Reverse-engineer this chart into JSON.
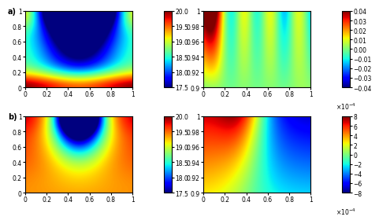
{
  "nx": 200,
  "ny": 200,
  "temp_cmap": "jet",
  "vel_cmap": "jet",
  "temp_vmin": 17.5,
  "temp_vmax": 20.0,
  "vel_a_vmin": -0.04,
  "vel_a_vmax": 0.04,
  "vel_b_vmin": -8,
  "vel_b_vmax": 8,
  "temp_ticks": [
    17.5,
    18,
    18.5,
    19,
    19.5,
    20
  ],
  "vel_a_ticks": [
    -0.04,
    -0.03,
    -0.02,
    -0.01,
    0,
    0.01,
    0.02,
    0.03,
    0.04
  ],
  "vel_b_ticks": [
    -8,
    -6,
    -4,
    -2,
    0,
    2,
    4,
    6,
    8
  ],
  "xticks": [
    0,
    0.2,
    0.4,
    0.6,
    0.8,
    1
  ],
  "yticks_temp": [
    0,
    0.2,
    0.4,
    0.6,
    0.8,
    1
  ],
  "yticks_vel": [
    0.9,
    0.92,
    0.94,
    0.96,
    0.98,
    1.0
  ],
  "label_a": "a)",
  "label_b": "b)",
  "tick_fontsize": 5.5,
  "label_fontsize": 7
}
